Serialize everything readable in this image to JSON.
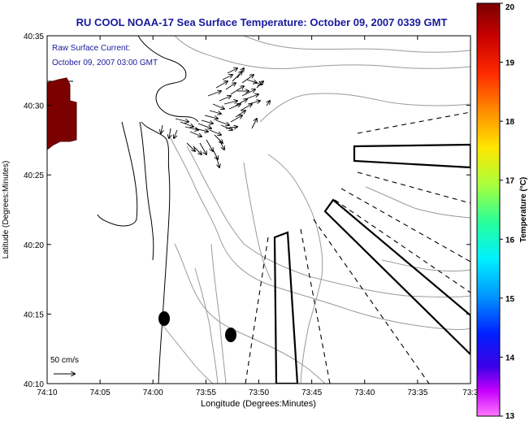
{
  "title": "RU COOL  NOAA-17  Sea Surface Temperature:  October 09, 2007 0339 GMT",
  "annotation": {
    "line1": "Raw Surface Current:",
    "line2": "October 09, 2007 03:00 GMT"
  },
  "axes": {
    "xlabel": "Longitude (Degrees:Minutes)",
    "ylabel": "Latitude (Degrees:Minutes)",
    "xticks": [
      "74:10",
      "74:05",
      "74:00",
      "73:55",
      "73:50",
      "73:45",
      "73:40",
      "73:35",
      "73:3"
    ],
    "yticks": [
      "40:35",
      "40:30",
      "40:25",
      "40:20",
      "40:15",
      "40:10"
    ]
  },
  "scale": {
    "label": "50 cm/s"
  },
  "colorbar": {
    "label": "Temperature (°C)",
    "ticks": [
      "20",
      "19",
      "18",
      "17",
      "16",
      "15",
      "14",
      "13"
    ],
    "min": 13,
    "max": 20
  },
  "colors": {
    "title_text": "#1a1a9c",
    "annotation_text": "#1a1a9c",
    "land_patch": "#7b0000",
    "contour": "#9a9a9a",
    "coast": "#000000"
  }
}
